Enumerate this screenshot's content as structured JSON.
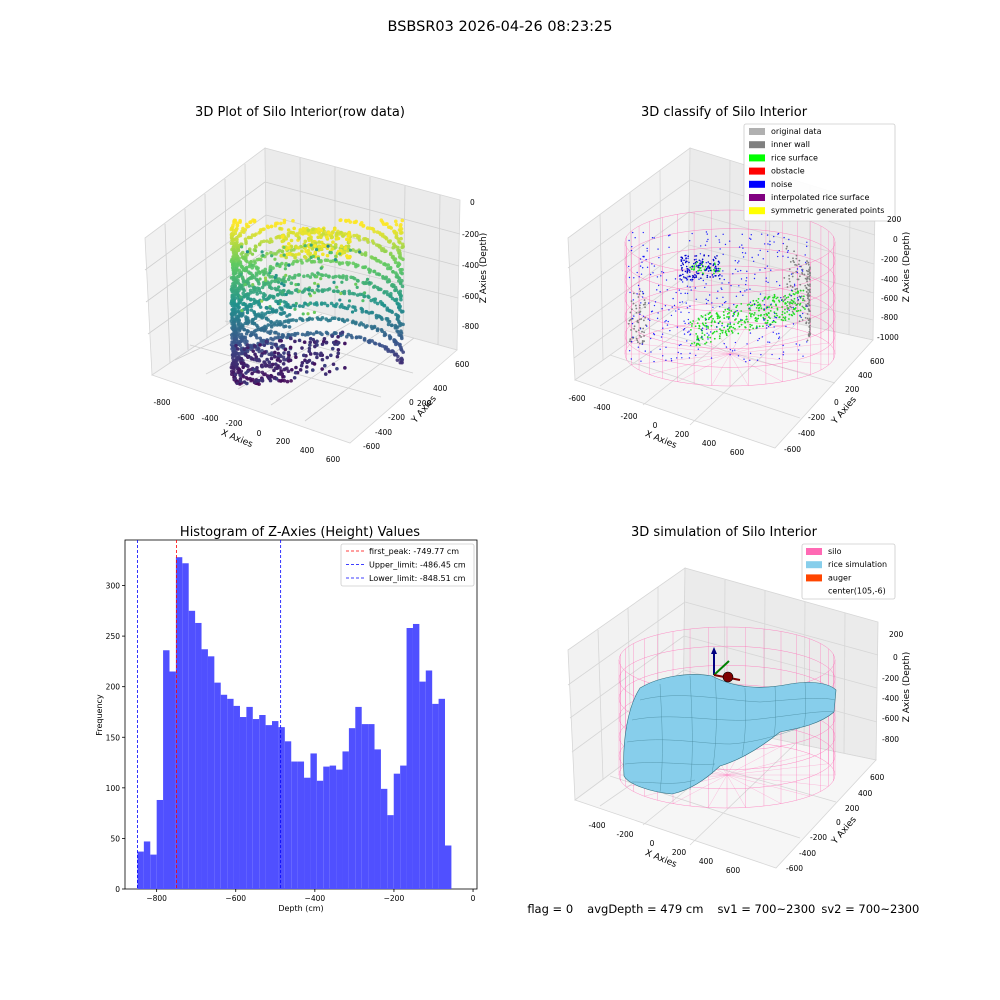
{
  "suptitle": "BSBSR03 2026-04-26 08:23:25",
  "panels": {
    "raw": {
      "title": "3D Plot of Silo Interior(row data)",
      "xlabel": "X Axies",
      "ylabel": "Y Axies",
      "zlabel": "Z Axies (Depth)",
      "xticks": [
        "-800",
        "-600",
        "-400",
        "-200",
        "0",
        "200",
        "400",
        "600"
      ],
      "yticks": [
        "600",
        "400",
        "200",
        "0",
        "-200",
        "-400",
        "-600"
      ],
      "zticks": [
        "0",
        "-200",
        "-400",
        "-600",
        "-800"
      ]
    },
    "classify": {
      "title": "3D classify of Silo Interior",
      "xlabel": "X Axies",
      "ylabel": "Y Axies",
      "zlabel": "Z Axies (Depth)",
      "xticks": [
        "-600",
        "-400",
        "-200",
        "0",
        "200",
        "400",
        "600"
      ],
      "yticks": [
        "600",
        "400",
        "200",
        "0",
        "-200",
        "-400",
        "-600"
      ],
      "zticks": [
        "200",
        "0",
        "-200",
        "-400",
        "-600",
        "-800",
        "-1000"
      ],
      "legend": [
        {
          "label": "original data",
          "color": "#b0b0b0"
        },
        {
          "label": "inner wall",
          "color": "#808080"
        },
        {
          "label": "rice surface",
          "color": "#00ff00"
        },
        {
          "label": "obstacle",
          "color": "#ff0000"
        },
        {
          "label": "noise",
          "color": "#0000ff"
        },
        {
          "label": "interpolated rice surface",
          "color": "#800080"
        },
        {
          "label": "symmetric generated points",
          "color": "#ffff00"
        }
      ]
    },
    "sim": {
      "title": "3D simulation of Silo Interior",
      "xlabel": "X Axies",
      "ylabel": "Y Axies",
      "zlabel": "Z Axies (Depth)",
      "xticks": [
        "-400",
        "-200",
        "0",
        "200",
        "400",
        "600"
      ],
      "yticks": [
        "600",
        "400",
        "200",
        "0",
        "-200",
        "-400",
        "-600"
      ],
      "zticks": [
        "200",
        "0",
        "-200",
        "-400",
        "-600",
        "-800"
      ],
      "legend": [
        {
          "label": "silo",
          "color": "#ff69b4"
        },
        {
          "label": "rice simulation",
          "color": "#87ceeb"
        },
        {
          "label": "auger",
          "color": "#ff4500"
        },
        {
          "label": "center(105,-6)",
          "color": ""
        }
      ]
    }
  },
  "status": {
    "flag": "flag = 0",
    "avg_depth": "avgDepth = 479 cm",
    "sv1": "sv1 = 700~2300",
    "sv2": "sv2 = 700~2300"
  },
  "chart_data": [
    {
      "type": "bar",
      "title": "Histogram of Z-Axies (Height) Values",
      "xlabel": "Depth (cm)",
      "ylabel": "Frequency",
      "xlim": [
        -880,
        10
      ],
      "ylim": [
        0,
        345
      ],
      "xticks": [
        -800,
        -600,
        -400,
        -200,
        0
      ],
      "yticks": [
        0,
        50,
        100,
        150,
        200,
        250,
        300
      ],
      "bin_start": -848.51,
      "bin_width": 16.2,
      "values": [
        37,
        47,
        34,
        88,
        236,
        215,
        328,
        322,
        275,
        263,
        237,
        230,
        204,
        192,
        188,
        181,
        170,
        180,
        168,
        172,
        162,
        166,
        160,
        146,
        126,
        126,
        110,
        134,
        107,
        121,
        122,
        118,
        136,
        159,
        180,
        163,
        163,
        138,
        99,
        73,
        114,
        122,
        258,
        262,
        205,
        216,
        183,
        188,
        43
      ],
      "lines": [
        {
          "label": "first_peak: -749.77 cm",
          "x": -749.77,
          "color": "#ff0000"
        },
        {
          "label": "Upper_limit: -486.45 cm",
          "x": -486.45,
          "color": "#0000ff"
        },
        {
          "label": "Lower_limit: -848.51 cm",
          "x": -848.51,
          "color": "#0000ff"
        }
      ],
      "bar_color": "#5050ff"
    }
  ]
}
